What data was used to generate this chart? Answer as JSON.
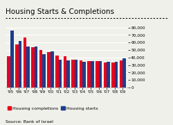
{
  "title": "Housing Starts & Completions",
  "years": [
    "'95",
    "'96",
    "'97",
    "'98",
    "'99",
    "'00",
    "'01",
    "'02",
    "'03",
    "'04",
    "'05",
    "'06",
    "'07",
    "'08",
    "'09"
  ],
  "completions": [
    42000,
    57000,
    67000,
    54000,
    50000,
    47000,
    43000,
    42000,
    37000,
    36000,
    35000,
    35000,
    33000,
    33000,
    36000
  ],
  "starts": [
    76000,
    62000,
    55000,
    55000,
    44000,
    48000,
    37000,
    36000,
    37000,
    34000,
    35000,
    35000,
    34000,
    34000,
    39000
  ],
  "color_completions": "#e8001c",
  "color_starts": "#1c3d8c",
  "ylim": [
    0,
    80000
  ],
  "yticks": [
    0,
    10000,
    20000,
    30000,
    40000,
    50000,
    60000,
    70000,
    80000
  ],
  "ytick_labels": [
    "0",
    "10,000",
    "20,000",
    "30,000",
    "40,000",
    "50,000",
    "60,000",
    "70,000",
    "80,000"
  ],
  "source": "Source: Bank of Israel",
  "background_color": "#f0f0eb",
  "legend_completions": "Housing completions",
  "legend_starts": "Housing starts",
  "bar_width": 0.4
}
